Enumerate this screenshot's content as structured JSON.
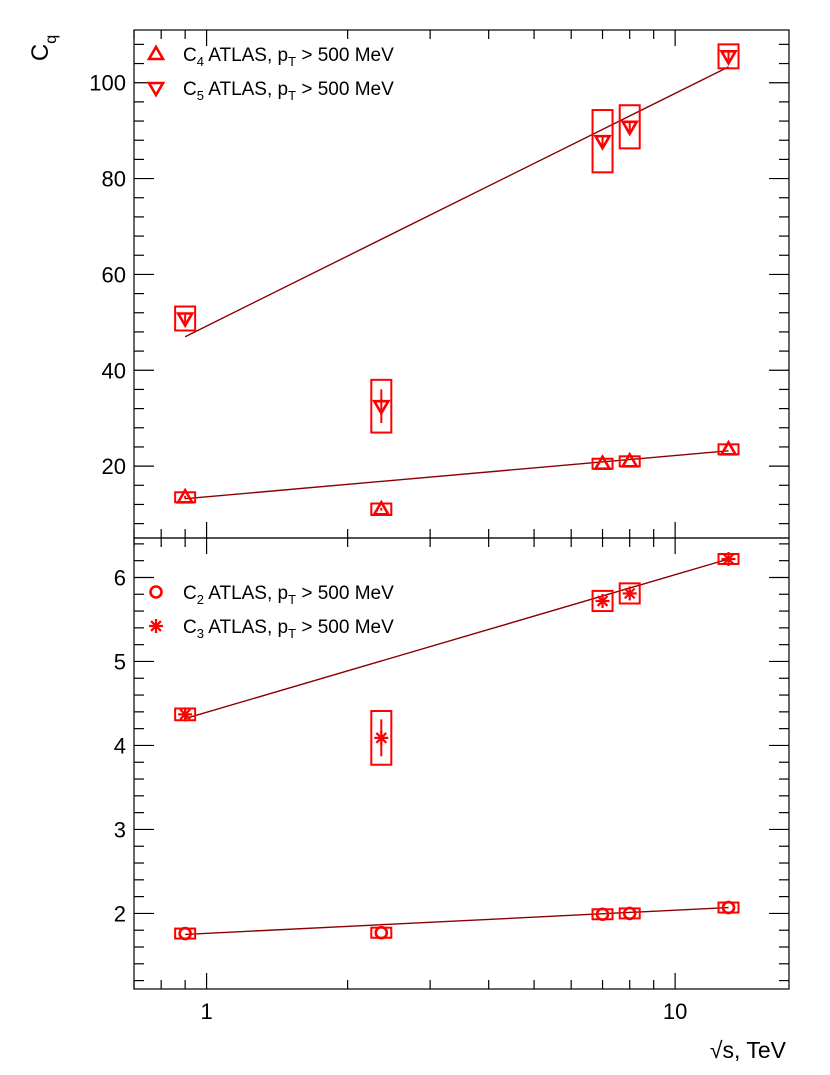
{
  "colors": {
    "data": "#ff0000",
    "fit": "#8b0000",
    "axis": "#000000"
  },
  "y_title": {
    "main": "C",
    "sub": "q"
  },
  "x_title": {
    "sqrt": "√",
    "text": "s, TeV"
  },
  "chart_data": [
    {
      "type": "scatter",
      "panel": "top",
      "xscale": "log",
      "ylim": [
        5,
        111
      ],
      "x_ticks": [
        1,
        10
      ],
      "y_ticks": [
        20,
        40,
        60,
        80,
        100
      ],
      "legend": [
        {
          "main": "C",
          "sub": "4",
          "rest": " ATLAS, p",
          "sub2": "T",
          "tail": " > 500 MeV",
          "marker": "triangle-up-open"
        },
        {
          "main": "C",
          "sub": "5",
          "rest": " ATLAS, p",
          "sub2": "T",
          "tail": " > 500 MeV",
          "marker": "triangle-down-open"
        }
      ],
      "legend_position": "top-left",
      "series": [
        {
          "name": "C4 ATLAS, pT > 500 MeV",
          "marker": "triangle-up-open",
          "points": [
            {
              "x": 0.9,
              "y": 13.5,
              "stat": 0.3,
              "sys": 0.6
            },
            {
              "x": 2.36,
              "y": 11.0,
              "stat": 0.3,
              "sys": 1.2
            },
            {
              "x": 7.0,
              "y": 20.5,
              "stat": 0.2,
              "sys": 1.0
            },
            {
              "x": 8.0,
              "y": 21.0,
              "stat": 0.2,
              "sys": 1.0
            },
            {
              "x": 13.0,
              "y": 23.5,
              "stat": 0.2,
              "sys": 0.8
            }
          ],
          "fit": {
            "x": [
              0.9,
              13.0
            ],
            "y": [
              13.2,
              23.2
            ]
          }
        },
        {
          "name": "C5 ATLAS, pT > 500 MeV",
          "marker": "triangle-down-open",
          "points": [
            {
              "x": 0.9,
              "y": 50.8,
              "stat": 0.8,
              "sys": 2.5
            },
            {
              "x": 2.36,
              "y": 32.5,
              "stat": 3.5,
              "sys": 5.5
            },
            {
              "x": 7.0,
              "y": 87.8,
              "stat": 1.0,
              "sys": 6.5
            },
            {
              "x": 8.0,
              "y": 90.8,
              "stat": 1.0,
              "sys": 4.5
            },
            {
              "x": 13.0,
              "y": 105.5,
              "stat": 0.8,
              "sys": 2.5
            }
          ],
          "fit": {
            "x": [
              0.9,
              13.0
            ],
            "y": [
              47.0,
              103.3
            ]
          }
        }
      ]
    },
    {
      "type": "scatter",
      "panel": "bottom",
      "xscale": "log",
      "ylim": [
        1.1,
        6.47
      ],
      "x_ticks": [
        1,
        10
      ],
      "y_ticks": [
        2,
        3,
        4,
        5,
        6
      ],
      "legend": [
        {
          "main": "C",
          "sub": "2",
          "rest": " ATLAS, p",
          "sub2": "T",
          "tail": " > 500 MeV",
          "marker": "circle-open"
        },
        {
          "main": "C",
          "sub": "3",
          "rest": " ATLAS, p",
          "sub2": "T",
          "tail": " > 500 MeV",
          "marker": "star"
        }
      ],
      "legend_position": "top-left",
      "series": [
        {
          "name": "C2 ATLAS, pT > 500 MeV",
          "marker": "circle-open",
          "points": [
            {
              "x": 0.9,
              "y": 1.76,
              "stat": 0.005,
              "sys": 0.03
            },
            {
              "x": 2.36,
              "y": 1.77,
              "stat": 0.01,
              "sys": 0.06
            },
            {
              "x": 7.0,
              "y": 1.99,
              "stat": 0.005,
              "sys": 0.04
            },
            {
              "x": 8.0,
              "y": 2.0,
              "stat": 0.005,
              "sys": 0.04
            },
            {
              "x": 13.0,
              "y": 2.07,
              "stat": 0.005,
              "sys": 0.03
            }
          ],
          "fit": {
            "x": [
              0.9,
              13.0
            ],
            "y": [
              1.75,
              2.07
            ]
          }
        },
        {
          "name": "C3 ATLAS, pT > 500 MeV",
          "marker": "star",
          "points": [
            {
              "x": 0.9,
              "y": 4.37,
              "stat": 0.02,
              "sys": 0.07
            },
            {
              "x": 2.36,
              "y": 4.09,
              "stat": 0.22,
              "sys": 0.32
            },
            {
              "x": 7.0,
              "y": 5.72,
              "stat": 0.03,
              "sys": 0.12
            },
            {
              "x": 8.0,
              "y": 5.81,
              "stat": 0.03,
              "sys": 0.12
            },
            {
              "x": 13.0,
              "y": 6.22,
              "stat": 0.02,
              "sys": 0.04
            }
          ],
          "fit": {
            "x": [
              0.9,
              13.0
            ],
            "y": [
              4.32,
              6.22
            ]
          }
        }
      ]
    }
  ]
}
